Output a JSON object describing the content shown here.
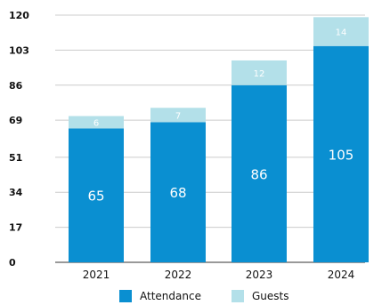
{
  "chart_data": {
    "type": "bar",
    "stacked": true,
    "categories": [
      "2021",
      "2022",
      "2023",
      "2024"
    ],
    "series": [
      {
        "name": "Attendance",
        "color": "#0a8fd1",
        "values": [
          65,
          68,
          86,
          105
        ]
      },
      {
        "name": "Guests",
        "color": "#b3e0e9",
        "values": [
          6,
          7,
          12,
          14
        ]
      }
    ],
    "yticks": [
      "0",
      "17",
      "34",
      "51",
      "69",
      "86",
      "103",
      "120"
    ],
    "ylim": [
      0,
      120
    ],
    "grid": "horizontal",
    "legend": "bottom",
    "title": "",
    "xlabel": "",
    "ylabel": ""
  }
}
